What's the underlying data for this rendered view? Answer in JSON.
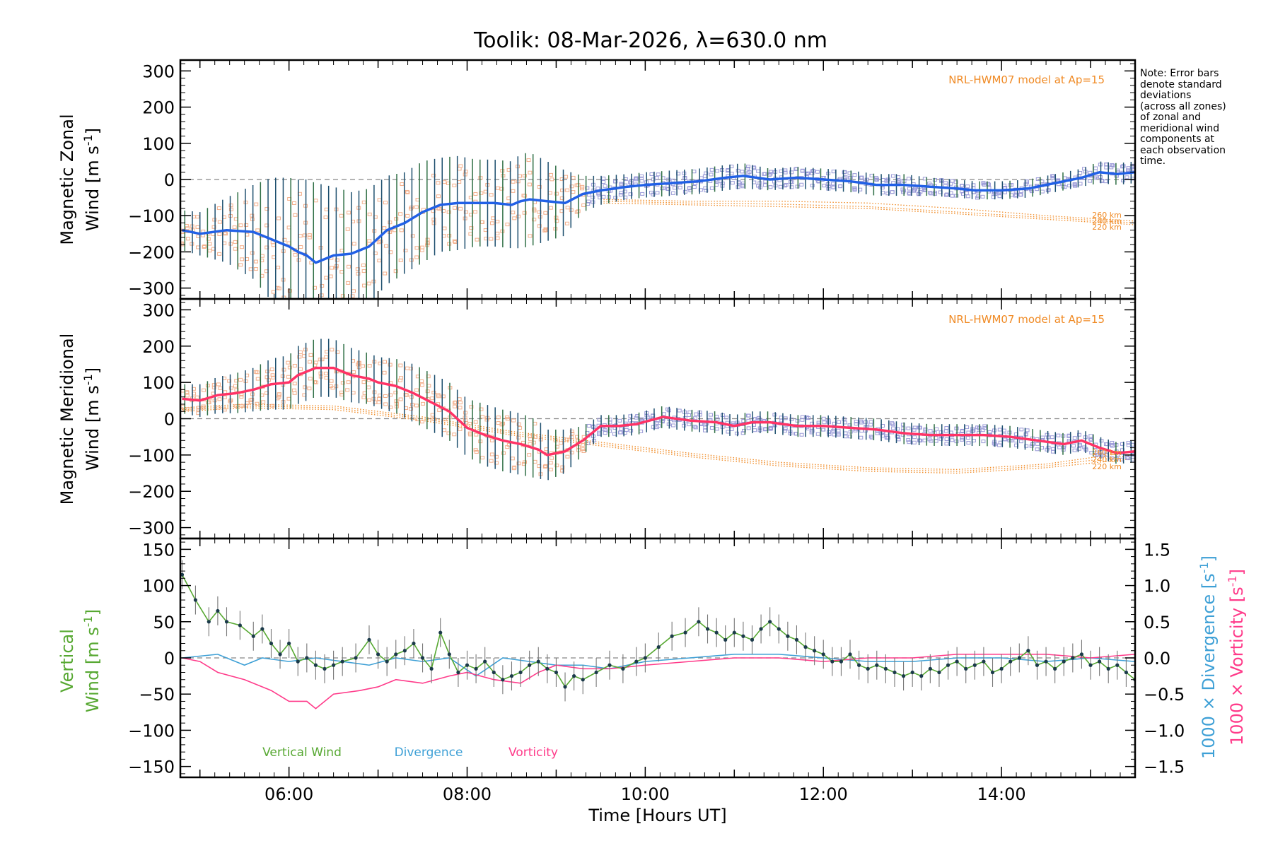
{
  "title": "Toolik: 08-Mar-2026, λ=630.0 nm",
  "note_lines": [
    "Note: Error bars",
    "denote standard",
    "deviations",
    "(across all zones)",
    "of zonal and",
    "meridional wind",
    "components at",
    "each observation",
    "time."
  ],
  "colors": {
    "zonal": "#2160e6",
    "meridional": "#ff3366",
    "vertical": "#57a832",
    "divergence": "#3ea0d6",
    "vorticity": "#ff3b8a",
    "model": "#f08a24",
    "zone_points": "#9a9ad8",
    "zone_points_early": "#f3b08c",
    "errorbar": "#1d4f6e"
  },
  "chart_data": [
    {
      "id": "zonal",
      "type": "line",
      "ylabel_line1": "Magnetic Zonal",
      "ylabel_line2_prefix": "Wind ",
      "unit_bracket": "[m s",
      "unit_exp": "-1",
      "unit_close": "]",
      "ylim": [
        -330,
        330
      ],
      "yticks": [
        300,
        200,
        100,
        0,
        -100,
        -200,
        -300
      ],
      "xlim": [
        4.78,
        15.5
      ],
      "model_label": "NRL-HWM07 model at Ap=15",
      "model_altitude_labels": [
        "260 km",
        "240 km",
        "220 km"
      ],
      "series": [
        {
          "name": "Zonal wind",
          "x": [
            4.8,
            5.0,
            5.3,
            5.6,
            5.8,
            6.0,
            6.1,
            6.2,
            6.3,
            6.5,
            6.7,
            6.9,
            7.1,
            7.3,
            7.5,
            7.7,
            7.9,
            8.1,
            8.3,
            8.5,
            8.6,
            8.7,
            8.9,
            9.1,
            9.3,
            9.5,
            9.8,
            10.0,
            10.3,
            10.6,
            10.9,
            11.1,
            11.4,
            11.7,
            12.0,
            12.3,
            12.6,
            12.9,
            13.2,
            13.5,
            13.7,
            14.0,
            14.3,
            14.6,
            14.9,
            15.1,
            15.3,
            15.5
          ],
          "y": [
            -140,
            -150,
            -140,
            -145,
            -165,
            -185,
            -200,
            -210,
            -230,
            -210,
            -205,
            -185,
            -140,
            -120,
            -90,
            -70,
            -65,
            -65,
            -65,
            -70,
            -60,
            -55,
            -60,
            -65,
            -40,
            -30,
            -20,
            -15,
            -10,
            -5,
            5,
            10,
            0,
            5,
            0,
            -5,
            -15,
            -15,
            -20,
            -25,
            -30,
            -30,
            -25,
            -10,
            5,
            20,
            15,
            20
          ],
          "err": [
            55,
            60,
            90,
            130,
            170,
            190,
            200,
            210,
            220,
            190,
            170,
            160,
            150,
            140,
            140,
            130,
            130,
            120,
            120,
            120,
            130,
            130,
            110,
            90,
            50,
            40,
            35,
            35,
            35,
            35,
            35,
            35,
            30,
            30,
            30,
            30,
            30,
            30,
            25,
            25,
            25,
            25,
            25,
            25,
            25,
            30,
            30,
            30
          ]
        }
      ],
      "model_curves": [
        {
          "name": "260 km",
          "x": [
            9.5,
            10.5,
            11.5,
            12.5,
            13.5,
            14.5,
            15.5
          ],
          "y": [
            -55,
            -60,
            -60,
            -65,
            -80,
            -100,
            -115
          ]
        },
        {
          "name": "240 km",
          "x": [
            9.5,
            10.5,
            11.5,
            12.5,
            13.5,
            14.5,
            15.5
          ],
          "y": [
            -60,
            -65,
            -68,
            -75,
            -90,
            -105,
            -120
          ]
        },
        {
          "name": "220 km",
          "x": [
            9.5,
            10.5,
            11.5,
            12.5,
            13.5,
            14.5,
            15.5
          ],
          "y": [
            -65,
            -70,
            -75,
            -80,
            -95,
            -110,
            -125
          ]
        }
      ]
    },
    {
      "id": "meridional",
      "type": "line",
      "ylabel_line1": "Magnetic Meridional",
      "ylabel_line2_prefix": "Wind ",
      "unit_bracket": "[m s",
      "unit_exp": "-1",
      "unit_close": "]",
      "ylim": [
        -330,
        330
      ],
      "yticks": [
        300,
        200,
        100,
        0,
        -100,
        -200,
        -300
      ],
      "xlim": [
        4.78,
        15.5
      ],
      "model_label": "NRL-HWM07 model at Ap=15",
      "model_altitude_labels": [
        "260 km",
        "240 km",
        "220 km"
      ],
      "series": [
        {
          "name": "Meridional wind",
          "x": [
            4.8,
            5.0,
            5.2,
            5.4,
            5.6,
            5.8,
            6.0,
            6.1,
            6.3,
            6.5,
            6.7,
            6.9,
            7.0,
            7.2,
            7.4,
            7.6,
            7.8,
            8.0,
            8.2,
            8.4,
            8.6,
            8.8,
            8.9,
            9.1,
            9.3,
            9.5,
            9.7,
            9.9,
            10.2,
            10.5,
            10.8,
            11.0,
            11.2,
            11.4,
            11.7,
            12.0,
            12.3,
            12.6,
            12.9,
            13.2,
            13.5,
            13.8,
            14.1,
            14.4,
            14.7,
            14.9,
            15.1,
            15.3,
            15.5
          ],
          "y": [
            55,
            50,
            65,
            70,
            80,
            95,
            100,
            120,
            140,
            140,
            120,
            110,
            100,
            90,
            70,
            45,
            20,
            -25,
            -45,
            -60,
            -70,
            -85,
            -100,
            -90,
            -60,
            -20,
            -20,
            -15,
            5,
            -5,
            -10,
            -20,
            -10,
            -10,
            -20,
            -20,
            -25,
            -30,
            -40,
            -45,
            -45,
            -45,
            -50,
            -60,
            -70,
            -60,
            -80,
            -95,
            -90
          ],
          "err": [
            40,
            45,
            50,
            55,
            60,
            70,
            75,
            80,
            80,
            80,
            75,
            70,
            70,
            75,
            80,
            80,
            80,
            80,
            85,
            85,
            85,
            80,
            70,
            60,
            40,
            30,
            30,
            30,
            30,
            30,
            30,
            30,
            30,
            30,
            30,
            30,
            30,
            30,
            30,
            30,
            30,
            30,
            30,
            30,
            30,
            30,
            30,
            30,
            30
          ]
        }
      ],
      "model_curves": [
        {
          "name": "260 km",
          "x": [
            4.8,
            5.5,
            6.5,
            7.5,
            8.5,
            9.5,
            10.5,
            11.5,
            12.5,
            13.5,
            14.5,
            15.5
          ],
          "y": [
            30,
            40,
            35,
            5,
            -35,
            -65,
            -95,
            -120,
            -135,
            -140,
            -125,
            -90
          ]
        },
        {
          "name": "240 km",
          "x": [
            4.8,
            5.5,
            6.5,
            7.5,
            8.5,
            9.5,
            10.5,
            11.5,
            12.5,
            13.5,
            14.5,
            15.5
          ],
          "y": [
            25,
            35,
            30,
            0,
            -40,
            -70,
            -100,
            -125,
            -140,
            -145,
            -130,
            -100
          ]
        },
        {
          "name": "220 km",
          "x": [
            4.8,
            5.5,
            6.5,
            7.5,
            8.5,
            9.5,
            10.5,
            11.5,
            12.5,
            13.5,
            14.5,
            15.5
          ],
          "y": [
            20,
            30,
            25,
            -5,
            -45,
            -75,
            -105,
            -130,
            -145,
            -150,
            -135,
            -110
          ]
        }
      ]
    },
    {
      "id": "vertical",
      "type": "line",
      "ylabel_vertical": "Vertical",
      "ylabel_wind": "Wind ",
      "unit_bracket": "[m s",
      "unit_exp": "-1",
      "unit_close": "]",
      "ylim": [
        -165,
        165
      ],
      "yticks": [
        150,
        100,
        50,
        0,
        -50,
        -100,
        -150
      ],
      "y2lim": [
        -1.65,
        1.65
      ],
      "y2ticks": [
        "1.5",
        "1.0",
        "0.5",
        "0.0",
        "−0.5",
        "−1.0",
        "−1.5"
      ],
      "y2label_div": "1000 × Divergence ",
      "y2label_vor": "1000 × Vorticity ",
      "y2_unit_open": "[s",
      "y2_unit_exp": "-1",
      "y2_unit_close": "]",
      "xlim": [
        4.78,
        15.5
      ],
      "xticks": [
        "06:00",
        "08:00",
        "10:00",
        "12:00",
        "14:00"
      ],
      "xtick_values": [
        6,
        8,
        10,
        12,
        14
      ],
      "xlabel": "Time [Hours UT]",
      "legend": [
        "Vertical Wind",
        "Divergence",
        "Vorticity"
      ],
      "series": [
        {
          "name": "Vertical Wind",
          "x": [
            4.8,
            4.95,
            5.1,
            5.2,
            5.3,
            5.45,
            5.6,
            5.7,
            5.8,
            5.9,
            6.0,
            6.1,
            6.2,
            6.3,
            6.4,
            6.5,
            6.6,
            6.75,
            6.9,
            7.0,
            7.1,
            7.2,
            7.3,
            7.4,
            7.5,
            7.6,
            7.7,
            7.8,
            7.9,
            8.0,
            8.1,
            8.2,
            8.3,
            8.4,
            8.5,
            8.6,
            8.7,
            8.8,
            8.9,
            9.0,
            9.1,
            9.2,
            9.3,
            9.45,
            9.6,
            9.75,
            9.9,
            10.0,
            10.15,
            10.3,
            10.45,
            10.6,
            10.7,
            10.8,
            10.9,
            11.0,
            11.1,
            11.2,
            11.3,
            11.4,
            11.5,
            11.6,
            11.7,
            11.8,
            11.9,
            12.0,
            12.1,
            12.2,
            12.3,
            12.4,
            12.5,
            12.6,
            12.7,
            12.8,
            12.9,
            13.0,
            13.1,
            13.2,
            13.3,
            13.4,
            13.5,
            13.6,
            13.7,
            13.8,
            13.9,
            14.0,
            14.1,
            14.2,
            14.3,
            14.4,
            14.5,
            14.6,
            14.7,
            14.8,
            14.9,
            15.0,
            15.1,
            15.2,
            15.3,
            15.4,
            15.5
          ],
          "y": [
            115,
            80,
            50,
            65,
            50,
            45,
            30,
            40,
            20,
            5,
            20,
            -5,
            0,
            -10,
            -15,
            -10,
            -5,
            0,
            25,
            5,
            -5,
            5,
            10,
            20,
            0,
            -15,
            35,
            5,
            -20,
            -10,
            -15,
            -5,
            -20,
            -30,
            -25,
            -20,
            -10,
            -5,
            -15,
            -20,
            -40,
            -25,
            -30,
            -20,
            -10,
            -15,
            -5,
            0,
            15,
            30,
            35,
            50,
            40,
            35,
            25,
            35,
            30,
            25,
            40,
            50,
            40,
            30,
            25,
            15,
            10,
            5,
            -5,
            -5,
            5,
            -10,
            -15,
            -10,
            -15,
            -20,
            -25,
            -20,
            -25,
            -15,
            -20,
            -10,
            -5,
            -15,
            -10,
            -5,
            -20,
            -15,
            -5,
            0,
            10,
            -10,
            -5,
            -15,
            -5,
            0,
            5,
            -10,
            -5,
            -15,
            -10,
            -20,
            -30
          ],
          "err": 20
        },
        {
          "name": "Divergence",
          "axis": "y2",
          "x": [
            4.8,
            5.2,
            5.5,
            5.7,
            6.0,
            6.3,
            6.6,
            6.9,
            7.2,
            7.5,
            7.8,
            8.1,
            8.4,
            8.7,
            9.0,
            9.3,
            9.6,
            10.0,
            10.5,
            11.0,
            11.5,
            12.0,
            12.5,
            13.0,
            13.5,
            14.0,
            14.5,
            15.0,
            15.5
          ],
          "y": [
            0.0,
            0.05,
            -0.1,
            0.0,
            -0.05,
            0.0,
            -0.05,
            -0.1,
            0.0,
            -0.05,
            0.0,
            -0.25,
            0.0,
            -0.05,
            -0.1,
            -0.1,
            -0.15,
            -0.05,
            0.0,
            0.05,
            0.05,
            0.0,
            -0.05,
            -0.05,
            0.0,
            0.0,
            -0.05,
            0.0,
            -0.05
          ]
        },
        {
          "name": "Vorticity",
          "axis": "y2",
          "x": [
            4.8,
            5.0,
            5.2,
            5.5,
            5.8,
            6.0,
            6.2,
            6.3,
            6.5,
            6.8,
            7.0,
            7.2,
            7.5,
            7.8,
            8.0,
            8.3,
            8.6,
            8.8,
            9.0,
            9.3,
            9.6,
            10.0,
            10.5,
            11.0,
            11.5,
            12.0,
            12.5,
            13.0,
            13.5,
            14.0,
            14.5,
            15.0,
            15.5
          ],
          "y": [
            0.0,
            -0.05,
            -0.2,
            -0.3,
            -0.45,
            -0.6,
            -0.6,
            -0.7,
            -0.5,
            -0.45,
            -0.4,
            -0.3,
            -0.35,
            -0.25,
            -0.2,
            -0.3,
            -0.35,
            -0.2,
            -0.1,
            -0.15,
            -0.15,
            -0.1,
            -0.05,
            0.0,
            0.0,
            -0.05,
            0.0,
            0.0,
            0.05,
            0.05,
            0.05,
            0.0,
            0.05
          ]
        }
      ]
    }
  ]
}
